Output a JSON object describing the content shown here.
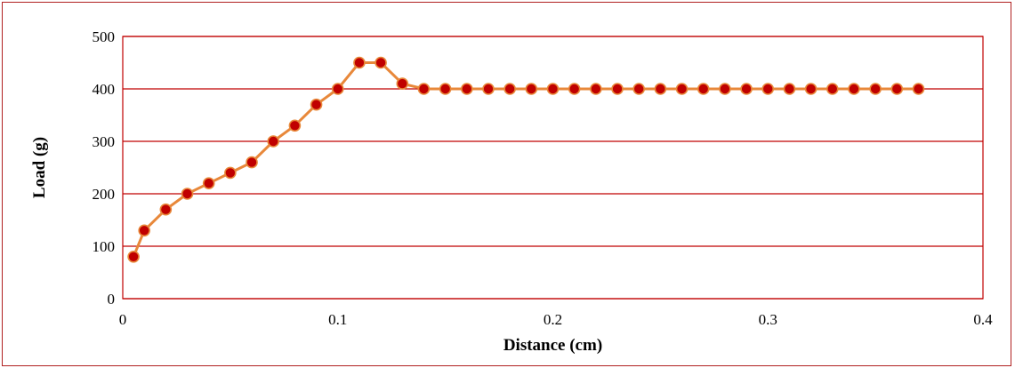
{
  "chart_data": {
    "type": "line",
    "title": "",
    "xlabel": "Distance (cm)",
    "ylabel": "Load (g)",
    "xlim": [
      0,
      0.4
    ],
    "ylim": [
      0,
      500
    ],
    "x_ticks": [
      0,
      0.1,
      0.2,
      0.3,
      0.4
    ],
    "x_tick_labels": [
      "0",
      "0.1",
      "0.2",
      "0.3",
      "0.4"
    ],
    "y_ticks": [
      0,
      100,
      200,
      300,
      400,
      500
    ],
    "y_tick_labels": [
      "0",
      "100",
      "200",
      "300",
      "400",
      "500"
    ],
    "grid": "horizontal",
    "legend": "none",
    "colors": {
      "line": "#e8883a",
      "marker_fill": "#c00000",
      "marker_edge": "#e8883a",
      "grid": "#c00000",
      "frame": "#b02020"
    },
    "series": [
      {
        "x": [
          0.005,
          0.01,
          0.02,
          0.03,
          0.04,
          0.05,
          0.06,
          0.07,
          0.08,
          0.09,
          0.1,
          0.11,
          0.12,
          0.13,
          0.14,
          0.15,
          0.16,
          0.17,
          0.18,
          0.19,
          0.2,
          0.21,
          0.22,
          0.23,
          0.24,
          0.25,
          0.26,
          0.27,
          0.28,
          0.29,
          0.3,
          0.31,
          0.32,
          0.33,
          0.34,
          0.35,
          0.36,
          0.37
        ],
        "values": [
          80,
          130,
          170,
          200,
          220,
          240,
          260,
          300,
          330,
          370,
          400,
          450,
          450,
          410,
          400,
          400,
          400,
          400,
          400,
          400,
          400,
          400,
          400,
          400,
          400,
          400,
          400,
          400,
          400,
          400,
          400,
          400,
          400,
          400,
          400,
          400,
          400,
          400
        ]
      }
    ]
  }
}
